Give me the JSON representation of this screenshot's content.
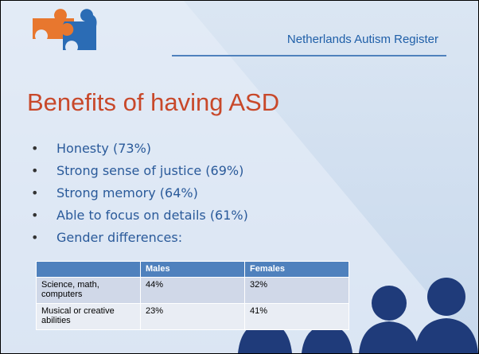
{
  "header": {
    "title": "Netherlands Autism Register"
  },
  "slide": {
    "title": "Benefits of having ASD",
    "bullets": [
      "Honesty (73%)",
      "Strong sense of justice (69%)",
      "Strong memory (64%)",
      "Able to focus on details (61%)",
      "Gender differences:"
    ]
  },
  "table": {
    "columns": [
      "Males",
      "Females"
    ],
    "rows": [
      [
        "Science, math, computers",
        "44%",
        "32%"
      ],
      [
        "Musical or creative abilities",
        "23%",
        "41%"
      ]
    ]
  }
}
